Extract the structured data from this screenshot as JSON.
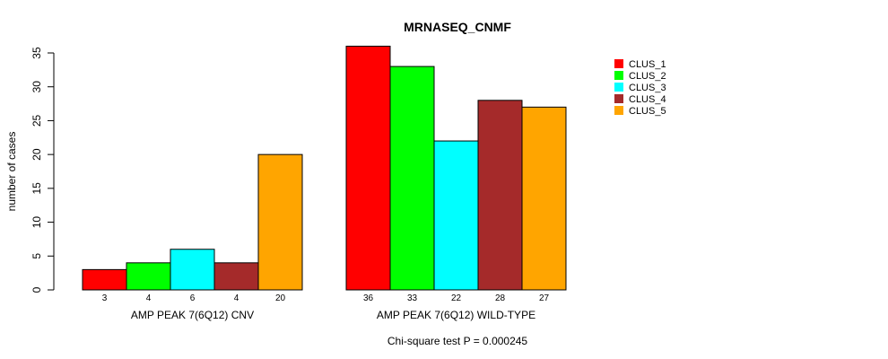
{
  "chart_data": {
    "type": "bar",
    "title": "MRNASEQ_CNMF",
    "ylabel": "number of cases",
    "xlabel": "",
    "ylim": [
      0,
      35
    ],
    "yticks": [
      0,
      5,
      10,
      15,
      20,
      25,
      30,
      35
    ],
    "grid": false,
    "legend_position": "top-right",
    "groups": [
      {
        "name": "AMP PEAK  7(6Q12) CNV",
        "values": [
          3,
          4,
          6,
          4,
          20
        ]
      },
      {
        "name": "AMP PEAK  7(6Q12) WILD-TYPE",
        "values": [
          36,
          33,
          22,
          28,
          27
        ]
      }
    ],
    "series": [
      {
        "name": "CLUS_1",
        "color": "#ff0000"
      },
      {
        "name": "CLUS_2",
        "color": "#00ff00"
      },
      {
        "name": "CLUS_3",
        "color": "#00ffff"
      },
      {
        "name": "CLUS_4",
        "color": "#a52a2a"
      },
      {
        "name": "CLUS_5",
        "color": "#ffa500"
      }
    ],
    "footnote": "Chi-square test P = 0.000245"
  }
}
